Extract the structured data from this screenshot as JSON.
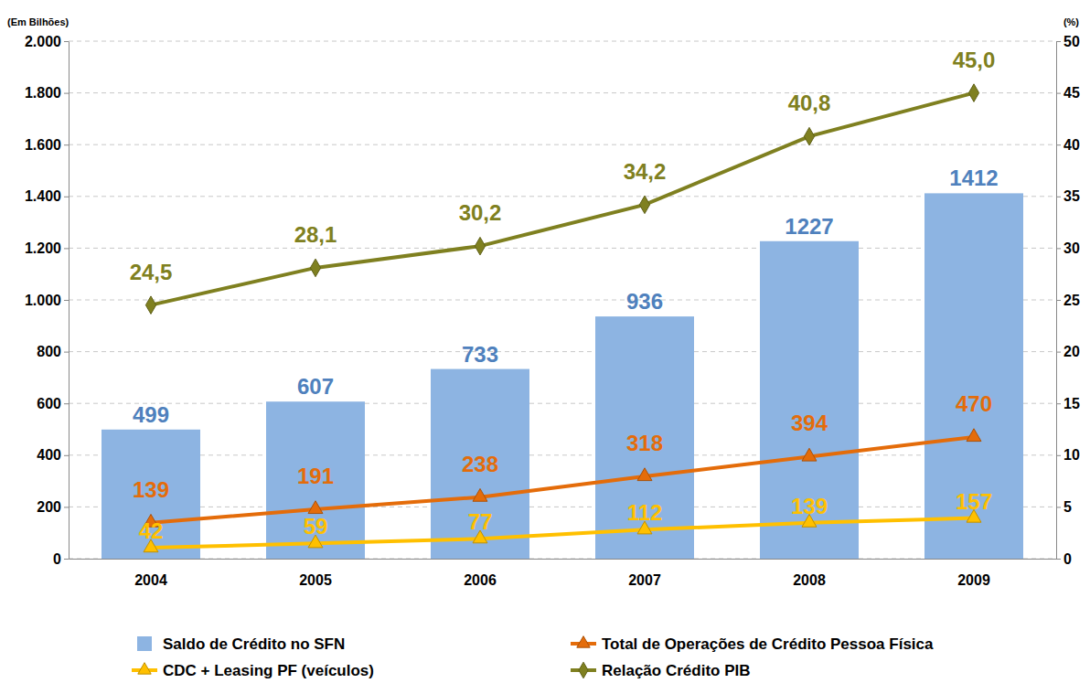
{
  "chart_data": {
    "type": "bar",
    "y_label": "(Em Bilhões)",
    "y2_label": "(%)",
    "categories": [
      "2004",
      "2005",
      "2006",
      "2007",
      "2008",
      "2009"
    ],
    "series": [
      {
        "name": "Saldo de Crédito no SFN",
        "type": "bar",
        "color": "#8DB4E2",
        "values": [
          499,
          607,
          733,
          936,
          1227,
          1412
        ]
      },
      {
        "name": "Total de Operações de Crédito Pessoa Física",
        "type": "line",
        "color": "#E46C0A",
        "marker": "triangle",
        "values": [
          139,
          191,
          238,
          318,
          394,
          470
        ]
      },
      {
        "name": "CDC + Leasing PF (veículos)",
        "type": "line",
        "color": "#FFC000",
        "marker": "triangle",
        "values": [
          42,
          59,
          77,
          112,
          139,
          157
        ]
      },
      {
        "name": "Relação Crédito PIB",
        "type": "line",
        "color": "#7F8020",
        "marker": "diamond",
        "axis": "y2",
        "values": [
          24.5,
          28.1,
          30.2,
          34.2,
          40.8,
          45.0
        ],
        "value_labels": [
          "24,5",
          "28,1",
          "30,2",
          "34,2",
          "40,8",
          "45,0"
        ]
      }
    ],
    "ylim": [
      0,
      2000
    ],
    "yticks": [
      0,
      200,
      400,
      600,
      800,
      {
        "value": 1000,
        "label": "1.000"
      },
      {
        "value": 1200,
        "label": "1.200"
      },
      {
        "value": 1400,
        "label": "1.400"
      },
      {
        "value": 1600,
        "label": "1.600"
      },
      {
        "value": 1800,
        "label": "1.800"
      },
      {
        "value": 2000,
        "label": "2.000"
      }
    ],
    "y2lim": [
      0,
      50
    ],
    "y2ticks": [
      0,
      5,
      10,
      15,
      20,
      25,
      30,
      35,
      40,
      45,
      50
    ],
    "grid": true,
    "legend": "bottom",
    "data_labels": true
  }
}
